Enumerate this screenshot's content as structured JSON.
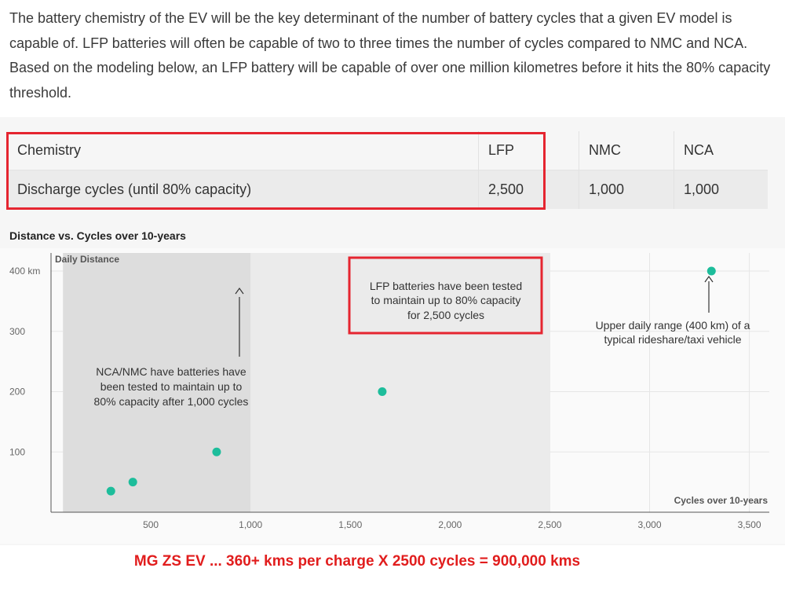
{
  "intro_text": "The battery chemistry of the EV will be the key determinant of the number of battery cycles that a given EV model is capable of. LFP batteries will often be capable of two to three times the number of cycles compared to NMC and NCA. Based on the modeling below, an LFP battery will be capable of over one million kilometres before it hits the 80% capacity threshold.",
  "table": {
    "rows": [
      [
        "Chemistry",
        "LFP",
        "NMC",
        "NCA"
      ],
      [
        "Discharge cycles (until 80% capacity)",
        "2,500",
        "1,000",
        "1,000"
      ]
    ]
  },
  "colors": {
    "highlight": "#e52530",
    "marker": "#1dbd9b",
    "footer": "#e11d1d"
  },
  "chart_data": {
    "type": "scatter",
    "title": "Distance vs. Cycles over 10-years",
    "xlabel": "Cycles over 10-years",
    "ylabel": "Daily Distance",
    "xlim": [
      0,
      3600
    ],
    "ylim": [
      0,
      430
    ],
    "x_ticks": [
      500,
      1000,
      1500,
      2000,
      2500,
      3000,
      3500
    ],
    "x_tick_labels": [
      "500",
      "1,000",
      "1,500",
      "2,000",
      "2,500",
      "3,000",
      "3,500"
    ],
    "y_ticks": [
      100,
      200,
      300,
      400
    ],
    "y_tick_labels": [
      "100",
      "200",
      "300",
      "400 km"
    ],
    "grid": true,
    "points": [
      {
        "x": 300,
        "y": 35
      },
      {
        "x": 410,
        "y": 50
      },
      {
        "x": 830,
        "y": 100
      },
      {
        "x": 1660,
        "y": 200
      },
      {
        "x": 3310,
        "y": 400
      }
    ],
    "shaded_regions": [
      {
        "x0": 60,
        "x1": 1000
      },
      {
        "x0": 1000,
        "x1": 2500
      }
    ],
    "annotations": [
      {
        "lines": [
          "NCA/NMC have batteries have",
          "been tested to maintain up to",
          "80% capacity after 1,000 cycles"
        ]
      },
      {
        "lines": [
          "LFP batteries have been tested",
          "to maintain up to 80% capacity",
          "for 2,500 cycles"
        ]
      },
      {
        "lines": [
          "Upper daily range (400 km) of a",
          "typical rideshare/taxi vehicle"
        ]
      }
    ]
  },
  "footer": "MG ZS EV ... 360+ kms per charge  X  2500 cycles = 900,000 kms"
}
